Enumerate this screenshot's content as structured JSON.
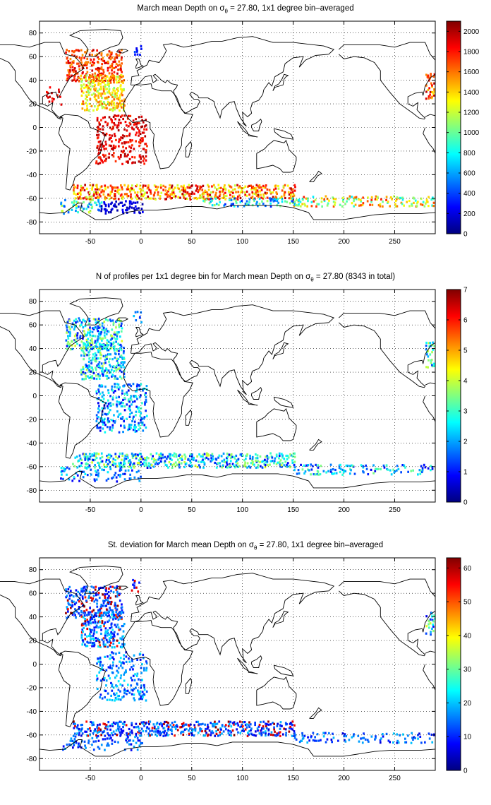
{
  "panels": [
    {
      "title_pre": "March mean Depth on σ",
      "title_sub": "θ",
      "title_post": " = 27.80, 1x1 degree bin–averaged",
      "colorbar": {
        "min": 0,
        "max": 2100,
        "ticks": [
          "0",
          "200",
          "400",
          "600",
          "800",
          "1000",
          "1200",
          "1400",
          "1600",
          "1800",
          "2000"
        ]
      }
    },
    {
      "title_pre": "N of profiles per 1x1 degree bin for March mean Depth on σ",
      "title_sub": "θ",
      "title_post": " = 27.80 (8343 in total)",
      "colorbar": {
        "min": 0,
        "max": 7,
        "ticks": [
          "0",
          "1",
          "2",
          "3",
          "4",
          "5",
          "6",
          "7"
        ]
      }
    },
    {
      "title_pre": "St. deviation for March mean Depth on σ",
      "title_sub": "θ",
      "title_post": " = 27.80, 1x1 degree bin–averaged",
      "colorbar": {
        "min": 0,
        "max": 63,
        "ticks": [
          "0",
          "10",
          "20",
          "30",
          "40",
          "50",
          "60"
        ]
      }
    }
  ],
  "axes": {
    "xlim": [
      -100,
      290
    ],
    "ylim": [
      -90,
      90
    ],
    "xticks": [
      "-50",
      "0",
      "50",
      "100",
      "150",
      "200",
      "250"
    ],
    "yticks": [
      "80",
      "60",
      "40",
      "20",
      "0",
      "-20",
      "-40",
      "-60",
      "-80"
    ],
    "grid": "dotted"
  },
  "colormap": "jet"
}
